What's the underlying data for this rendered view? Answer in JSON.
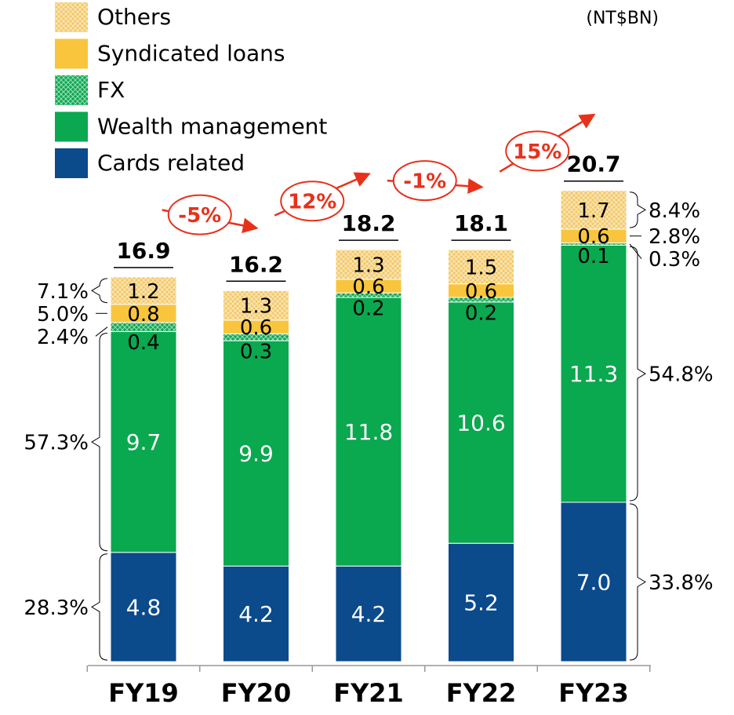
{
  "chart_data": {
    "type": "stacked_bar",
    "unit": "(NT$BN)",
    "categories": [
      "FY19",
      "FY20",
      "FY21",
      "FY22",
      "FY23"
    ],
    "series": [
      {
        "name": "Cards related",
        "color": "#0b4a8b",
        "values": [
          4.8,
          4.2,
          4.2,
          5.2,
          7.0
        ],
        "value_labels": [
          "4.8",
          "4.2",
          "4.2",
          "5.2",
          "7.0"
        ]
      },
      {
        "name": "Wealth management",
        "color": "#0aa84f",
        "values": [
          9.7,
          9.9,
          11.8,
          10.6,
          11.3
        ]
      },
      {
        "name": "FX",
        "color": "#0aa84f",
        "pattern": true,
        "values": [
          0.4,
          0.3,
          0.2,
          0.2,
          0.1
        ]
      },
      {
        "name": "Syndicated loans",
        "color": "#f8c53c",
        "values": [
          0.8,
          0.6,
          0.6,
          0.6,
          0.6
        ]
      },
      {
        "name": "Others",
        "color": "#f3c968",
        "pattern": true,
        "values": [
          1.2,
          1.3,
          1.3,
          1.5,
          1.7
        ]
      }
    ],
    "totals": [
      16.9,
      16.2,
      18.2,
      18.1,
      20.7
    ],
    "growth_labels": [
      "-5%",
      "12%",
      "-1%",
      "15%"
    ],
    "share_labels_first": [
      "28.3%",
      "57.3%",
      "2.4%",
      "5.0%",
      "7.1%"
    ],
    "share_labels_last": [
      "33.8%",
      "54.8%",
      "0.3%",
      "2.8%",
      "8.4%"
    ]
  }
}
